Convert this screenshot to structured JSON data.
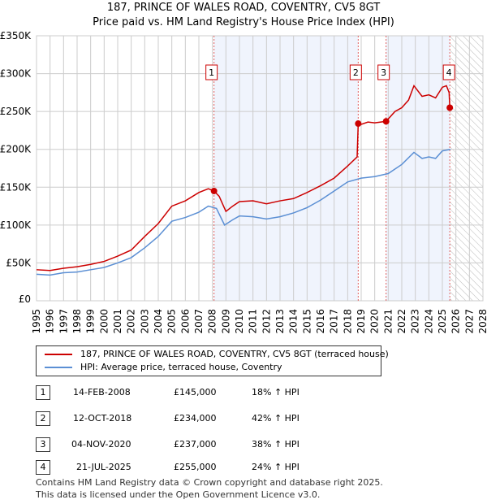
{
  "chart_data": {
    "type": "line",
    "title": "187, PRINCE OF WALES ROAD, COVENTRY, CV5 8GT",
    "subtitle": "Price paid vs. HM Land Registry's House Price Index (HPI)",
    "xlim": [
      1995,
      2028
    ],
    "ylim": [
      0,
      350000
    ],
    "x_ticks": [
      "1995",
      "1996",
      "1997",
      "1998",
      "1999",
      "2000",
      "2001",
      "2002",
      "2003",
      "2004",
      "2005",
      "2006",
      "2007",
      "2008",
      "2009",
      "2010",
      "2011",
      "2012",
      "2013",
      "2014",
      "2015",
      "2016",
      "2017",
      "2018",
      "2019",
      "2020",
      "2021",
      "2022",
      "2023",
      "2024",
      "2025",
      "2026",
      "2027",
      "2028"
    ],
    "y_ticks": [
      {
        "v": 0,
        "l": "£0"
      },
      {
        "v": 50000,
        "l": "£50K"
      },
      {
        "v": 100000,
        "l": "£100K"
      },
      {
        "v": 150000,
        "l": "£150K"
      },
      {
        "v": 200000,
        "l": "£200K"
      },
      {
        "v": 250000,
        "l": "£250K"
      },
      {
        "v": 300000,
        "l": "£300K"
      },
      {
        "v": 350000,
        "l": "£350K"
      }
    ],
    "grid": true,
    "series": [
      {
        "name": "187, PRINCE OF WALES ROAD, COVENTRY, CV5 8GT (terraced house)",
        "color": "#cc0000",
        "x": [
          1995,
          1996,
          1997,
          1998,
          1999,
          2000,
          2001,
          2002,
          2003,
          2004,
          2005,
          2006,
          2007,
          2007.7,
          2008.12,
          2008.5,
          2009,
          2009.5,
          2010,
          2011,
          2012,
          2013,
          2014,
          2015,
          2016,
          2017,
          2018,
          2018.7,
          2018.78,
          2019,
          2019.5,
          2020,
          2020.84,
          2021.5,
          2022,
          2022.5,
          2022.9,
          2023.5,
          2024,
          2024.5,
          2025,
          2025.3,
          2025.5,
          2025.55
        ],
        "y": [
          41000,
          40000,
          43000,
          45000,
          48000,
          52000,
          59000,
          67000,
          85000,
          102000,
          125000,
          132000,
          143000,
          148000,
          145000,
          138000,
          118000,
          125000,
          131000,
          132000,
          128000,
          132000,
          135000,
          143000,
          152000,
          162000,
          178000,
          190000,
          234000,
          233000,
          236000,
          235000,
          237000,
          250000,
          255000,
          265000,
          284000,
          270000,
          272000,
          268000,
          282000,
          284000,
          275000,
          255000
        ]
      },
      {
        "name": "HPI: Average price, terraced house, Coventry",
        "color": "#5b8fd4",
        "x": [
          1995,
          1996,
          1997,
          1998,
          1999,
          2000,
          2001,
          2002,
          2003,
          2004,
          2005,
          2006,
          2007,
          2007.7,
          2008.3,
          2008.9,
          2009.5,
          2010,
          2011,
          2012,
          2013,
          2014,
          2015,
          2016,
          2017,
          2018,
          2019,
          2020,
          2021,
          2022,
          2022.9,
          2023.5,
          2024,
          2024.5,
          2025,
          2025.6
        ],
        "y": [
          35000,
          34000,
          37000,
          38000,
          41000,
          44000,
          50000,
          57000,
          70000,
          85000,
          105000,
          110000,
          117000,
          125000,
          122000,
          100000,
          107000,
          112000,
          111000,
          108000,
          111000,
          116000,
          123000,
          133000,
          145000,
          157000,
          162000,
          164000,
          168000,
          180000,
          196000,
          188000,
          190000,
          188000,
          198000,
          200000
        ]
      }
    ],
    "sales": [
      {
        "n": "1",
        "x": 2008.12,
        "y": 145000,
        "date": "14-FEB-2008",
        "price": "£145,000",
        "hpi": "18% ↑ HPI"
      },
      {
        "n": "2",
        "x": 2018.78,
        "y": 234000,
        "date": "12-OCT-2018",
        "price": "£234,000",
        "hpi": "42% ↑ HPI"
      },
      {
        "n": "3",
        "x": 2020.84,
        "y": 237000,
        "date": "04-NOV-2020",
        "price": "£237,000",
        "hpi": "38% ↑ HPI"
      },
      {
        "n": "4",
        "x": 2025.55,
        "y": 255000,
        "date": "21-JUL-2025",
        "price": "£255,000",
        "hpi": "24% ↑ HPI"
      }
    ],
    "legend_placement": "below"
  },
  "footer": {
    "line1": "Contains HM Land Registry data © Crown copyright and database right 2025.",
    "line2": "This data is licensed under the Open Government Licence v3.0."
  }
}
